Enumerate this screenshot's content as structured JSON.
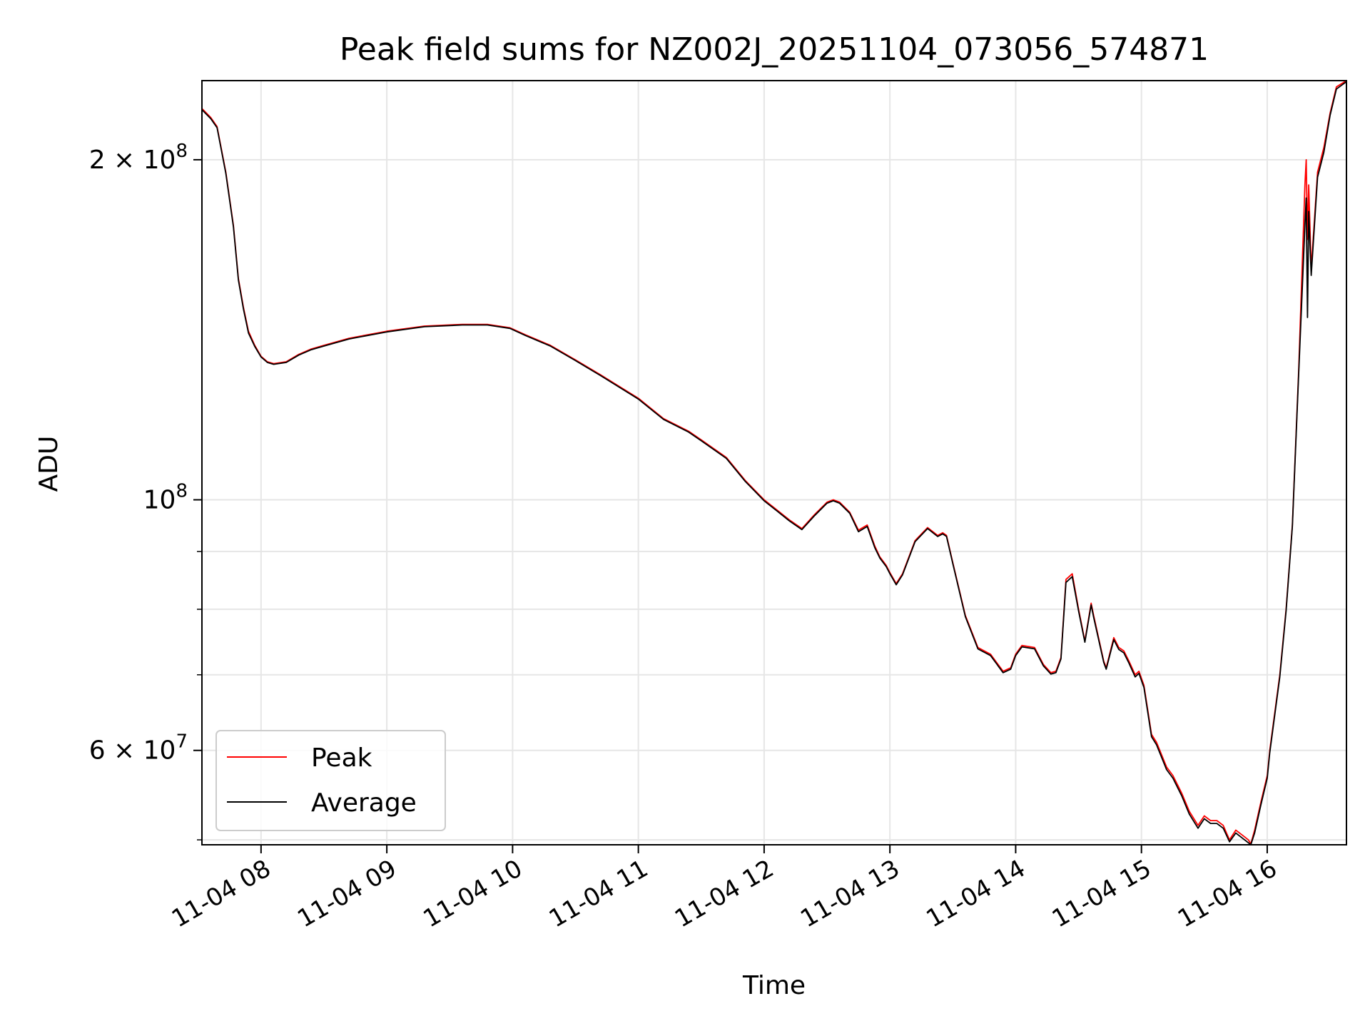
{
  "chart_data": {
    "type": "line",
    "title": "Peak field sums for NZ002J_20251104_073056_574871",
    "xlabel": "Time",
    "ylabel": "ADU",
    "xlim": [
      7.53,
      16.63
    ],
    "ylim": [
      49500000,
      235000000
    ],
    "yscale": "log",
    "grid": true,
    "legend_position": "lower-left",
    "x_ticks": [
      {
        "value": 8,
        "label": "11-04 08"
      },
      {
        "value": 9,
        "label": "11-04 09"
      },
      {
        "value": 10,
        "label": "11-04 10"
      },
      {
        "value": 11,
        "label": "11-04 11"
      },
      {
        "value": 12,
        "label": "11-04 12"
      },
      {
        "value": 13,
        "label": "11-04 13"
      },
      {
        "value": 14,
        "label": "11-04 14"
      },
      {
        "value": 15,
        "label": "11-04 15"
      },
      {
        "value": 16,
        "label": "11-04 16"
      }
    ],
    "y_major_ticks": [
      {
        "value": 60000000,
        "mantissa": "6",
        "exponent": "7"
      },
      {
        "value": 100000000,
        "mantissa": "",
        "exponent": "8"
      },
      {
        "value": 200000000,
        "mantissa": "2",
        "exponent": "8"
      }
    ],
    "y_minor_grid": [
      50000000,
      70000000,
      80000000,
      90000000
    ],
    "x_unit": "hour of 2025-11-04",
    "series": [
      {
        "name": "Peak",
        "color": "#ff0000",
        "x": [
          7.53,
          7.6,
          7.65,
          7.72,
          7.78,
          7.82,
          7.86,
          7.9,
          7.95,
          8.0,
          8.05,
          8.1,
          8.2,
          8.3,
          8.4,
          8.5,
          8.7,
          9.0,
          9.3,
          9.6,
          9.8,
          9.98,
          10.1,
          10.3,
          10.5,
          10.7,
          11.0,
          11.2,
          11.4,
          11.5,
          11.7,
          11.85,
          12.0,
          12.1,
          12.2,
          12.3,
          12.4,
          12.5,
          12.55,
          12.6,
          12.68,
          12.75,
          12.82,
          12.88,
          12.92,
          12.97,
          13.0,
          13.05,
          13.1,
          13.2,
          13.3,
          13.38,
          13.42,
          13.45,
          13.5,
          13.6,
          13.7,
          13.8,
          13.9,
          13.96,
          14.0,
          14.05,
          14.15,
          14.22,
          14.28,
          14.32,
          14.36,
          14.4,
          14.45,
          14.5,
          14.55,
          14.6,
          14.62,
          14.7,
          14.72,
          14.78,
          14.82,
          14.86,
          14.9,
          14.95,
          14.98,
          15.02,
          15.08,
          15.12,
          15.2,
          15.25,
          15.32,
          15.38,
          15.45,
          15.5,
          15.55,
          15.6,
          15.65,
          15.7,
          15.75,
          15.8,
          15.85,
          15.87,
          15.9,
          15.95,
          16.0,
          16.02,
          16.1,
          16.15,
          16.2,
          16.25,
          16.3,
          16.31,
          16.32,
          16.33,
          16.35,
          16.4,
          16.45,
          16.5,
          16.55,
          16.63
        ],
        "values": [
          222000000,
          218000000,
          214000000,
          195000000,
          175000000,
          157000000,
          148000000,
          141000000,
          137000000,
          134000000,
          132500000,
          132000000,
          132500000,
          134500000,
          136000000,
          137000000,
          139000000,
          141000000,
          142500000,
          143000000,
          143000000,
          142000000,
          140000000,
          137000000,
          133000000,
          129000000,
          123000000,
          118000000,
          115000000,
          113000000,
          109000000,
          104000000,
          100000000,
          98000000,
          96000000,
          94300000,
          97000000,
          99500000,
          100000000,
          99500000,
          97500000,
          94000000,
          95000000,
          91000000,
          89000000,
          87500000,
          86200000,
          84300000,
          86000000,
          92000000,
          94500000,
          93000000,
          93500000,
          93000000,
          88000000,
          79000000,
          74000000,
          73000000,
          70500000,
          71000000,
          73000000,
          74300000,
          74000000,
          71500000,
          70300000,
          70500000,
          72500000,
          85000000,
          86000000,
          80000000,
          75000000,
          81000000,
          79000000,
          72000000,
          71000000,
          75500000,
          74000000,
          73500000,
          72000000,
          70000000,
          70500000,
          68500000,
          62000000,
          61000000,
          58000000,
          57000000,
          55000000,
          53000000,
          51500000,
          52500000,
          52000000,
          52000000,
          51500000,
          50000000,
          51000000,
          50500000,
          50000000,
          49600000,
          51000000,
          54000000,
          57000000,
          60000000,
          70000000,
          80000000,
          95000000,
          130000000,
          190000000,
          200000000,
          170000000,
          190000000,
          160000000,
          195000000,
          205000000,
          220000000,
          232000000,
          235000000
        ]
      },
      {
        "name": "Average",
        "color": "#000000",
        "x": [
          7.53,
          7.6,
          7.65,
          7.72,
          7.78,
          7.82,
          7.86,
          7.9,
          7.95,
          8.0,
          8.05,
          8.1,
          8.2,
          8.3,
          8.4,
          8.5,
          8.7,
          9.0,
          9.3,
          9.6,
          9.8,
          9.98,
          10.1,
          10.3,
          10.5,
          10.7,
          11.0,
          11.2,
          11.4,
          11.5,
          11.7,
          11.85,
          12.0,
          12.1,
          12.2,
          12.3,
          12.4,
          12.5,
          12.55,
          12.6,
          12.68,
          12.75,
          12.82,
          12.88,
          12.92,
          12.97,
          13.0,
          13.05,
          13.1,
          13.2,
          13.3,
          13.38,
          13.42,
          13.45,
          13.5,
          13.6,
          13.7,
          13.8,
          13.9,
          13.96,
          14.0,
          14.05,
          14.15,
          14.22,
          14.28,
          14.32,
          14.36,
          14.4,
          14.45,
          14.5,
          14.55,
          14.6,
          14.62,
          14.7,
          14.72,
          14.78,
          14.82,
          14.86,
          14.9,
          14.95,
          14.98,
          15.02,
          15.08,
          15.12,
          15.2,
          15.25,
          15.32,
          15.38,
          15.45,
          15.5,
          15.55,
          15.6,
          15.65,
          15.7,
          15.75,
          15.8,
          15.85,
          15.87,
          15.9,
          15.95,
          16.0,
          16.02,
          16.1,
          16.15,
          16.2,
          16.25,
          16.3,
          16.31,
          16.32,
          16.33,
          16.35,
          16.4,
          16.45,
          16.5,
          16.55,
          16.63
        ],
        "values": [
          221500000,
          217500000,
          213500000,
          194500000,
          174500000,
          156500000,
          147500000,
          140500000,
          136700000,
          133800000,
          132300000,
          131800000,
          132300000,
          134300000,
          135800000,
          136800000,
          138800000,
          140800000,
          142300000,
          142800000,
          142800000,
          141800000,
          139800000,
          136800000,
          132800000,
          128800000,
          122800000,
          117800000,
          114800000,
          112800000,
          108800000,
          103800000,
          99800000,
          97800000,
          95800000,
          94100000,
          96800000,
          99300000,
          99800000,
          99300000,
          97300000,
          93700000,
          94700000,
          90700000,
          88800000,
          87300000,
          86000000,
          84100000,
          85800000,
          91800000,
          94300000,
          92800000,
          93300000,
          92800000,
          87800000,
          78800000,
          73800000,
          72800000,
          70300000,
          70800000,
          72800000,
          74100000,
          73800000,
          71300000,
          70100000,
          70300000,
          72300000,
          84500000,
          85500000,
          79700000,
          74800000,
          80700000,
          78700000,
          71800000,
          70800000,
          75200000,
          73700000,
          73200000,
          71700000,
          69700000,
          70200000,
          68200000,
          61700000,
          60700000,
          57700000,
          56700000,
          54700000,
          52700000,
          51200000,
          52200000,
          51700000,
          51700000,
          51200000,
          49800000,
          50700000,
          50200000,
          49700000,
          49500000,
          50700000,
          53700000,
          56700000,
          59700000,
          69700000,
          79700000,
          94700000,
          129000000,
          175000000,
          185000000,
          145000000,
          180000000,
          158000000,
          193000000,
          203000000,
          219000000,
          231000000,
          234500000
        ]
      }
    ]
  }
}
